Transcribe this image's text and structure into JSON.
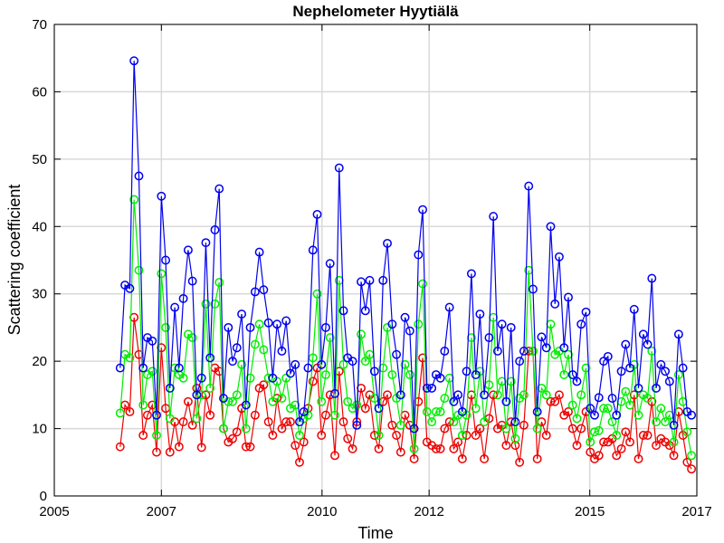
{
  "chart_data": {
    "type": "line",
    "title": "Nephelometer Hyytiälä",
    "xlabel": "Time",
    "ylabel": "Scattering coefficient",
    "xlim": [
      2005.0,
      2017.0
    ],
    "ylim": [
      0,
      70
    ],
    "xticks": [
      2005.0,
      2007.0,
      2010.0,
      2012.0,
      2015.0,
      2017.0
    ],
    "xtick_labels": [
      "2005",
      "2007",
      "2010",
      "2012",
      "2015",
      "2017"
    ],
    "yticks": [
      0,
      10,
      20,
      30,
      40,
      50,
      60,
      70
    ],
    "ytick_labels": [
      "0",
      "10",
      "20",
      "30",
      "40",
      "50",
      "60",
      "70"
    ],
    "grid": true,
    "legend": "none",
    "x": [
      2006.23,
      2006.32,
      2006.41,
      2006.49,
      2006.58,
      2006.66,
      2006.74,
      2006.83,
      2006.91,
      2007.0,
      2007.08,
      2007.16,
      2007.25,
      2007.33,
      2007.41,
      2007.5,
      2007.58,
      2007.66,
      2007.75,
      2007.83,
      2007.91,
      2008.0,
      2008.08,
      2008.16,
      2008.25,
      2008.33,
      2008.41,
      2008.5,
      2008.58,
      2008.66,
      2008.75,
      2008.83,
      2008.91,
      2009.0,
      2009.08,
      2009.16,
      2009.25,
      2009.33,
      2009.41,
      2009.5,
      2009.58,
      2009.66,
      2009.74,
      2009.83,
      2009.91,
      2009.99,
      2010.07,
      2010.15,
      2010.24,
      2010.32,
      2010.4,
      2010.48,
      2010.57,
      2010.65,
      2010.73,
      2010.81,
      2010.89,
      2010.98,
      2011.06,
      2011.14,
      2011.22,
      2011.31,
      2011.39,
      2011.47,
      2011.55,
      2011.64,
      2011.72,
      2011.8,
      2011.88,
      2011.96,
      2012.05,
      2012.13,
      2012.21,
      2012.29,
      2012.38,
      2012.46,
      2012.54,
      2012.62,
      2012.7,
      2012.79,
      2012.87,
      2012.95,
      2013.03,
      2013.12,
      2013.2,
      2013.28,
      2013.36,
      2013.44,
      2013.53,
      2013.61,
      2013.69,
      2013.77,
      2013.86,
      2013.94,
      2014.02,
      2014.1,
      2014.19,
      2014.27,
      2014.35,
      2014.43,
      2014.52,
      2014.6,
      2014.68,
      2014.76,
      2014.84,
      2014.93,
      2015.01,
      2015.09,
      2015.17,
      2015.26,
      2015.34,
      2015.42,
      2015.5,
      2015.59,
      2015.67,
      2015.75,
      2015.83,
      2015.91,
      2016.0,
      2016.08,
      2016.16,
      2016.24,
      2016.33,
      2016.41,
      2016.49,
      2016.57,
      2016.66,
      2016.74,
      2016.82,
      2016.9
    ],
    "series": [
      {
        "color": "#0000ee",
        "values": [
          19,
          31.3,
          30.8,
          64.6,
          47.5,
          19,
          23.5,
          23,
          12,
          44.5,
          35,
          16,
          28,
          19,
          29.3,
          36.5,
          31.9,
          15,
          17.5,
          37.6,
          20.5,
          39.5,
          45.6,
          14.5,
          25,
          20,
          22,
          27,
          13.5,
          25,
          30.3,
          36.2,
          30.6,
          25.7,
          17.5,
          25.5,
          21.5,
          26,
          18.2,
          19.5,
          11,
          12.5,
          19,
          36.5,
          41.8,
          19.5,
          25,
          34.5,
          15.2,
          48.7,
          27.5,
          20.5,
          20,
          10.5,
          31.8,
          27.5,
          32,
          18.5,
          13,
          32,
          37.5,
          25.5,
          21,
          15,
          26.5,
          24.5,
          10,
          35.8,
          42.5,
          16,
          16,
          18,
          17.5,
          21.5,
          28,
          14,
          15,
          12.5,
          18.5,
          33,
          18,
          27,
          15,
          23.5,
          41.5,
          21.5,
          25.5,
          14,
          25,
          11,
          20,
          21.5,
          46,
          30.7,
          12.5,
          23.6,
          22,
          40,
          28.5,
          35.5,
          22,
          29.5,
          18,
          17,
          25.5,
          27.3,
          13,
          12,
          14.6,
          20,
          20.7,
          14.5,
          12,
          18.5,
          22.5,
          19,
          27.7,
          16,
          24,
          22.5,
          32.3,
          16,
          19.5,
          18.5,
          17,
          10.5,
          24,
          19,
          12.5,
          12
        ]
      },
      {
        "color": "#00ee00",
        "values": [
          12.3,
          21,
          20.5,
          44,
          33.5,
          13.5,
          18,
          18.5,
          9,
          33,
          25,
          11.5,
          19,
          18,
          17.5,
          24,
          23.5,
          11.5,
          15,
          28.5,
          16,
          28.5,
          31.7,
          10,
          14,
          14,
          15,
          19.5,
          10,
          17.5,
          22.5,
          25.5,
          21.7,
          17.5,
          14,
          17,
          14.5,
          17.5,
          13,
          13.5,
          9,
          11.5,
          12,
          20.5,
          30,
          14,
          18,
          23.5,
          12,
          32,
          19.5,
          14,
          13,
          13.5,
          24,
          20,
          21,
          14.5,
          9,
          19,
          25,
          18,
          14.5,
          10.5,
          19.5,
          18,
          7,
          25.5,
          31.5,
          12.5,
          11,
          12.5,
          12.5,
          14.5,
          17.5,
          11,
          12,
          9,
          12,
          23.5,
          13,
          18.5,
          11,
          16.5,
          26.5,
          15,
          17,
          10,
          17,
          8.5,
          14.5,
          15,
          33.5,
          21.5,
          10,
          16,
          15,
          25.5,
          21,
          21.5,
          18,
          21,
          13.5,
          11.5,
          15,
          19,
          8,
          9.5,
          9.7,
          13,
          13,
          11,
          9,
          14,
          15.5,
          13.5,
          19.5,
          12,
          15,
          14.5,
          21.5,
          11,
          13,
          11,
          12,
          8,
          18,
          14,
          9.5,
          6
        ]
      },
      {
        "color": "#ee0000",
        "values": [
          7.3,
          13.5,
          12.5,
          26.5,
          21,
          9,
          12,
          13.5,
          6.5,
          22,
          13,
          6.5,
          11,
          7.3,
          11,
          14,
          10.5,
          16,
          7.2,
          15,
          12,
          19,
          18.5,
          10,
          8,
          8.5,
          9.5,
          13,
          7.3,
          7.3,
          12,
          16,
          16.5,
          11,
          9,
          14.5,
          10,
          11,
          11,
          7.5,
          5,
          8,
          13,
          17,
          19,
          9,
          12,
          15,
          6,
          18.5,
          11,
          8.5,
          7,
          11,
          16,
          13,
          15,
          9,
          7,
          14,
          15,
          10.5,
          9,
          6.5,
          12,
          10.5,
          5.5,
          14,
          20.5,
          8,
          7.5,
          7,
          7,
          10,
          11,
          7,
          8,
          5.5,
          9,
          15,
          9,
          10,
          5.5,
          11.5,
          15,
          10,
          10.5,
          7.5,
          11,
          7.5,
          5,
          10.5,
          21.5,
          21.5,
          5.5,
          11,
          9,
          14,
          14,
          15,
          12,
          12.5,
          10,
          7.5,
          10,
          12.5,
          6.5,
          5.5,
          6,
          8,
          8,
          8.5,
          6,
          7,
          9.5,
          8,
          15,
          5.5,
          9,
          9,
          14,
          7.5,
          8.5,
          8,
          7.5,
          6,
          12.5,
          9,
          5,
          4
        ]
      }
    ]
  }
}
